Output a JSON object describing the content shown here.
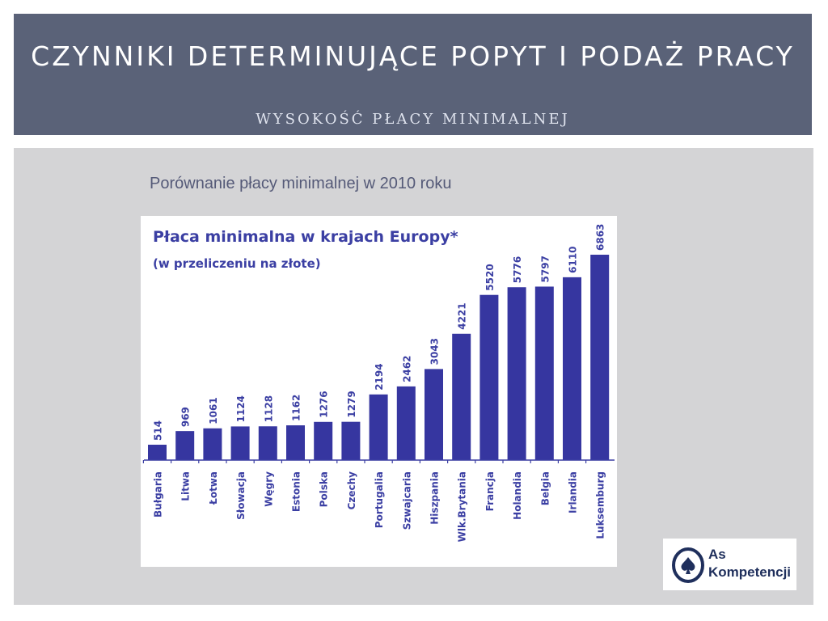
{
  "slide": {
    "title": "CZYNNIKI DETERMINUJĄCE POPYT I PODAŻ PRACY",
    "subtitle": "WYSOKOŚĆ PŁACY MINIMALNEJ",
    "caption": "Porównanie płacy minimalnej w 2010 roku"
  },
  "logo": {
    "line1": "As",
    "line2": "Kompetencji"
  },
  "colors": {
    "bar": "#3636a0",
    "chart_text": "#3b3fa3",
    "header": "#5a6278"
  },
  "chart_data": {
    "type": "bar",
    "title": "Płaca minimalna w krajach Europy*",
    "subtitle": "(w przeliczeniu na złote)",
    "categories": [
      "Bułgaria",
      "Litwa",
      "Łotwa",
      "Słowacja",
      "Węgry",
      "Estonia",
      "Polska",
      "Czechy",
      "Portugalia",
      "Szwajcaria",
      "Hiszpania",
      "Wlk.Brytania",
      "Francja",
      "Holandia",
      "Belgia",
      "Irlandia",
      "Luksemburg"
    ],
    "values": [
      514,
      969,
      1061,
      1124,
      1128,
      1162,
      1276,
      1279,
      2194,
      2462,
      3043,
      4221,
      5520,
      5776,
      5797,
      6110,
      6863
    ],
    "value_labels_rotated": true,
    "category_labels_rotated": true,
    "ylim": [
      0,
      6863
    ],
    "grid": false,
    "legend": "none"
  }
}
